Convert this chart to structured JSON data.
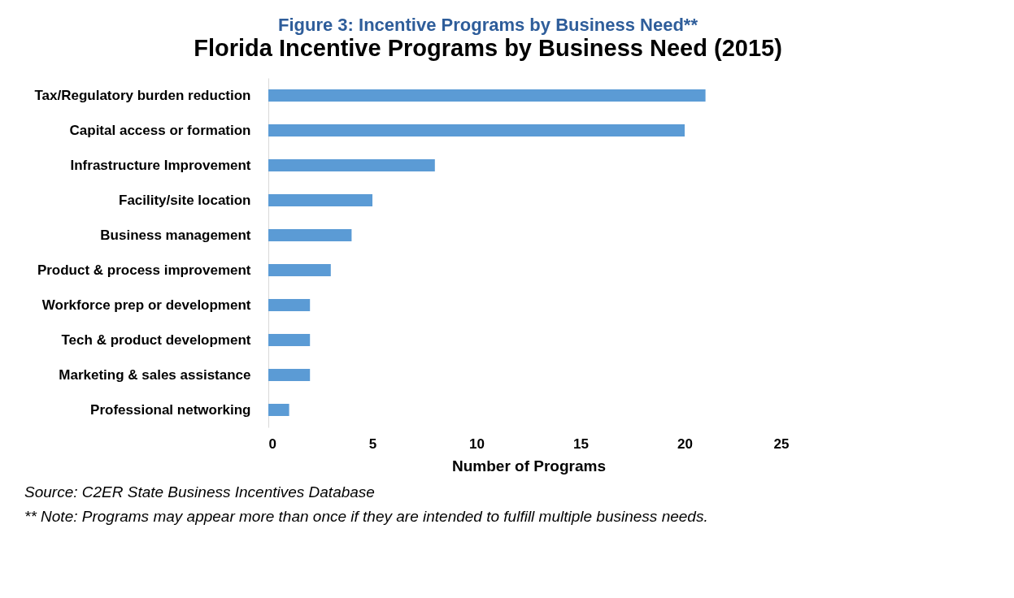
{
  "chart_data": {
    "type": "bar",
    "orientation": "horizontal",
    "title": "Figure 3: Incentive Programs by Business Need**",
    "subtitle": "Florida Incentive Programs by Business Need (2015)",
    "categories": [
      "Tax/Regulatory burden reduction",
      "Capital access or formation",
      "Infrastructure Improvement",
      "Facility/site location",
      "Business management",
      "Product & process improvement",
      "Workforce prep or development",
      "Tech & product development",
      "Marketing & sales assistance",
      "Professional networking"
    ],
    "values": [
      21,
      20,
      8,
      5,
      4,
      3,
      2,
      2,
      2,
      1
    ],
    "color": "#5b9bd5",
    "xlim": [
      0,
      25
    ],
    "xticks": [
      0,
      5,
      10,
      15,
      20,
      25
    ],
    "xlabel": "Number of Programs",
    "grid": false,
    "annotations": [
      "Source: C2ER State Business Incentives Database",
      "** Note: Programs may appear more than once if they are intended to fulfill multiple business needs."
    ]
  }
}
